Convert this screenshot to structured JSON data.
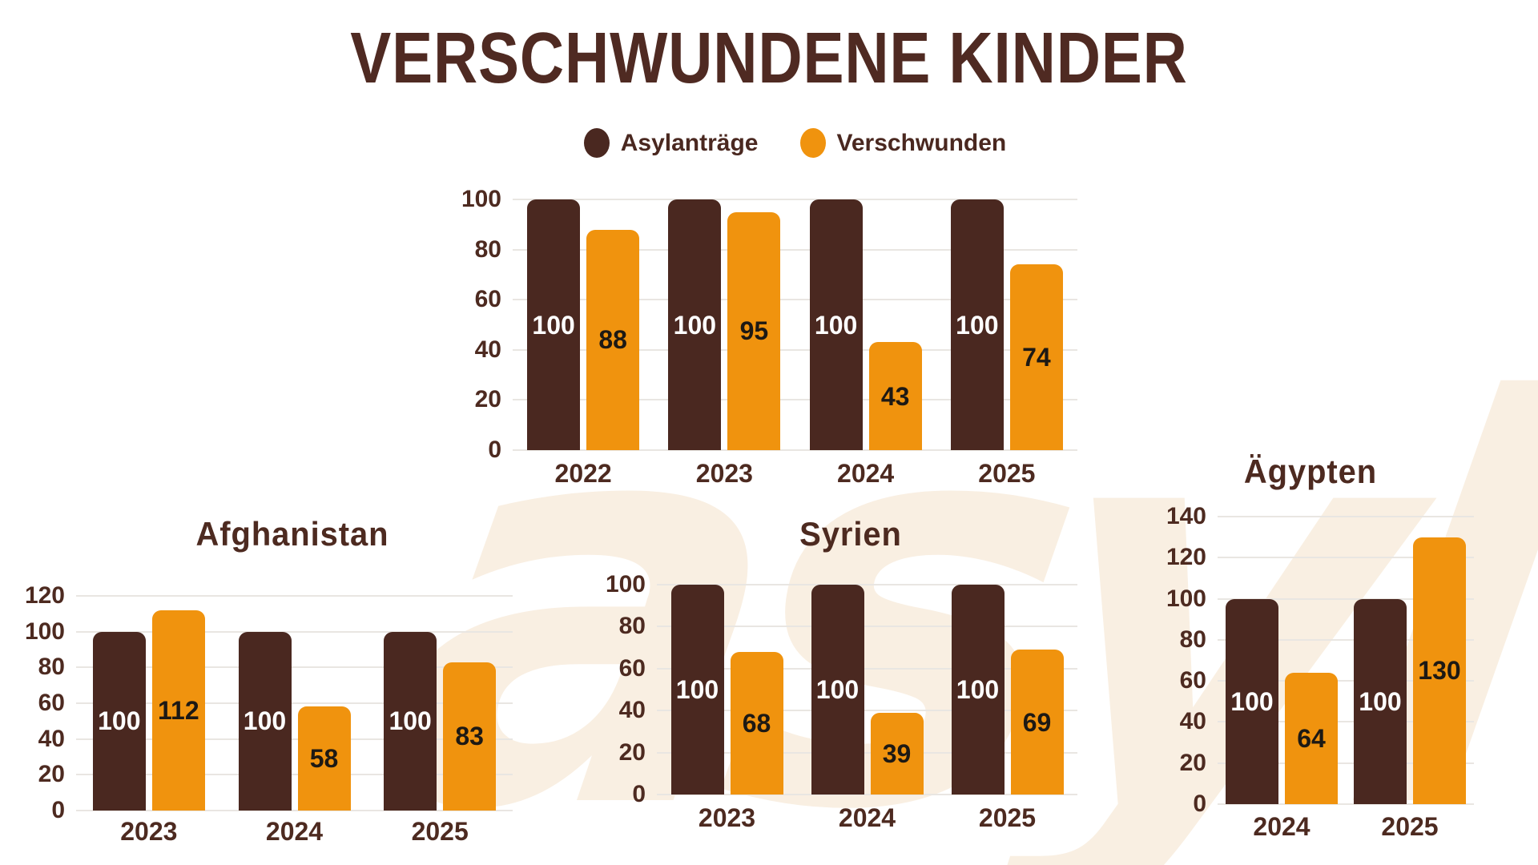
{
  "title": "VERSCHWUNDENE KINDER",
  "watermark": {
    "text": "asyl"
  },
  "legend": {
    "items": [
      {
        "label": "Asylanträge",
        "color": "#4a2820"
      },
      {
        "label": "Verschwunden",
        "color": "#f0930e"
      }
    ]
  },
  "colors": {
    "dark_series": "#4a2820",
    "orange_series": "#f0930e",
    "text_brown": "#4d2a20",
    "value_on_dark": "#ffffff",
    "value_on_orange": "#1d1914",
    "gridline": "#e9e6e2",
    "watermark": "#f9efe2",
    "background": "#ffffff"
  },
  "chart_data": [
    {
      "id": "overall",
      "type": "bar",
      "title": "",
      "categories": [
        "2022",
        "2023",
        "2024",
        "2025"
      ],
      "series": [
        {
          "name": "Asylanträge",
          "values": [
            100,
            100,
            100,
            100
          ]
        },
        {
          "name": "Verschwunden",
          "values": [
            88,
            95,
            43,
            74
          ]
        }
      ],
      "ylim": [
        0,
        100
      ],
      "yticks": [
        0,
        20,
        40,
        60,
        80,
        100
      ],
      "grid": true,
      "legend_position": "top"
    },
    {
      "id": "afghanistan",
      "type": "bar",
      "title": "Afghanistan",
      "categories": [
        "2023",
        "2024",
        "2025"
      ],
      "series": [
        {
          "name": "Asylanträge",
          "values": [
            100,
            100,
            100
          ]
        },
        {
          "name": "Verschwunden",
          "values": [
            112,
            58,
            83
          ]
        }
      ],
      "ylim": [
        0,
        120
      ],
      "yticks": [
        0,
        20,
        40,
        60,
        80,
        100,
        120
      ],
      "grid": true,
      "legend_position": "none"
    },
    {
      "id": "syrien",
      "type": "bar",
      "title": "Syrien",
      "categories": [
        "2023",
        "2024",
        "2025"
      ],
      "series": [
        {
          "name": "Asylanträge",
          "values": [
            100,
            100,
            100
          ]
        },
        {
          "name": "Verschwunden",
          "values": [
            68,
            39,
            69
          ]
        }
      ],
      "ylim": [
        0,
        100
      ],
      "yticks": [
        0,
        20,
        40,
        60,
        80,
        100
      ],
      "grid": true,
      "legend_position": "none"
    },
    {
      "id": "aegypten",
      "type": "bar",
      "title": "Ägypten",
      "categories": [
        "2024",
        "2025"
      ],
      "series": [
        {
          "name": "Asylanträge",
          "values": [
            100,
            100
          ]
        },
        {
          "name": "Verschwunden",
          "values": [
            64,
            130
          ]
        }
      ],
      "ylim": [
        0,
        140
      ],
      "yticks": [
        0,
        20,
        40,
        60,
        80,
        100,
        120,
        140
      ],
      "grid": true,
      "legend_position": "none"
    }
  ]
}
